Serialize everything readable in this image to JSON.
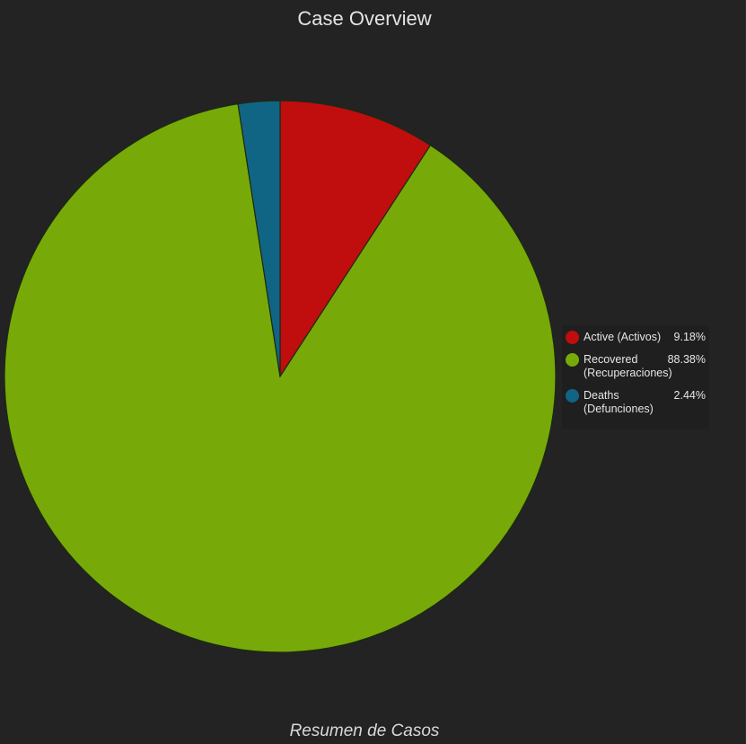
{
  "header": {
    "title": "Case Overview"
  },
  "footer": {
    "title": "Resumen de Casos"
  },
  "chart_data": {
    "type": "pie",
    "title": "Case Overview",
    "slices": [
      {
        "label": "Active (Activos)",
        "value": 9.18,
        "display": "9.18%",
        "color": "#c00d0d"
      },
      {
        "label": "Recovered (Recuperaciones)",
        "value": 88.38,
        "display": "88.38%",
        "color": "#77aa08"
      },
      {
        "label": "Deaths (Defunciones)",
        "value": 2.44,
        "display": "2.44%",
        "color": "#116584"
      }
    ],
    "start_angle": "12 o'clock",
    "direction": "clockwise",
    "legend_position": "right"
  }
}
